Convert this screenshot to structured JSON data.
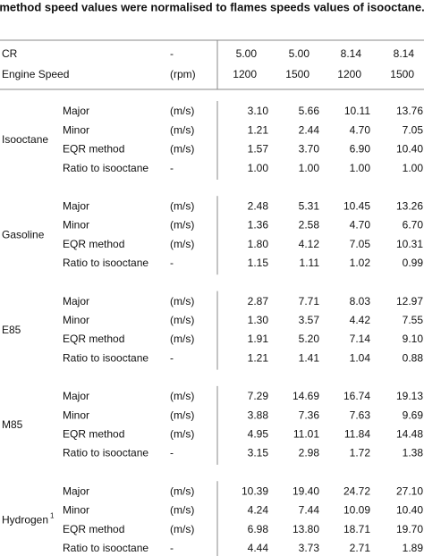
{
  "caption": "method speed values were normalised to flames speeds values of isooctane.",
  "header": [
    {
      "label": "CR",
      "unit": "-",
      "values": [
        "5.00",
        "5.00",
        "8.14",
        "8.14"
      ]
    },
    {
      "label": "Engine Speed",
      "unit": "(rpm)",
      "values": [
        "1200",
        "1500",
        "1200",
        "1500"
      ]
    }
  ],
  "groups": [
    {
      "name": "Isooctane",
      "rows": [
        {
          "measure": "Major",
          "unit": "(m/s)",
          "values": [
            "3.10",
            "5.66",
            "10.11",
            "13.76"
          ]
        },
        {
          "measure": "Minor",
          "unit": "(m/s)",
          "values": [
            "1.21",
            "2.44",
            "4.70",
            "7.05"
          ]
        },
        {
          "measure": "EQR method",
          "unit": "(m/s)",
          "values": [
            "1.57",
            "3.70",
            "6.90",
            "10.40"
          ]
        },
        {
          "measure": "Ratio to isooctane",
          "unit": "-",
          "values": [
            "1.00",
            "1.00",
            "1.00",
            "1.00"
          ]
        }
      ]
    },
    {
      "name": "Gasoline",
      "rows": [
        {
          "measure": "Major",
          "unit": "(m/s)",
          "values": [
            "2.48",
            "5.31",
            "10.45",
            "13.26"
          ]
        },
        {
          "measure": "Minor",
          "unit": "(m/s)",
          "values": [
            "1.36",
            "2.58",
            "4.70",
            "6.70"
          ]
        },
        {
          "measure": "EQR method",
          "unit": "(m/s)",
          "values": [
            "1.80",
            "4.12",
            "7.05",
            "10.31"
          ]
        },
        {
          "measure": "Ratio to isooctane",
          "unit": "-",
          "values": [
            "1.15",
            "1.11",
            "1.02",
            "0.99"
          ]
        }
      ]
    },
    {
      "name": "E85",
      "rows": [
        {
          "measure": "Major",
          "unit": "(m/s)",
          "values": [
            "2.87",
            "7.71",
            "8.03",
            "12.97"
          ]
        },
        {
          "measure": "Minor",
          "unit": "(m/s)",
          "values": [
            "1.30",
            "3.57",
            "4.42",
            "7.55"
          ]
        },
        {
          "measure": "EQR method",
          "unit": "(m/s)",
          "values": [
            "1.91",
            "5.20",
            "7.14",
            "9.10"
          ]
        },
        {
          "measure": "Ratio to isooctane",
          "unit": "-",
          "values": [
            "1.21",
            "1.41",
            "1.04",
            "0.88"
          ]
        }
      ]
    },
    {
      "name": "M85",
      "rows": [
        {
          "measure": "Major",
          "unit": "(m/s)",
          "values": [
            "7.29",
            "14.69",
            "16.74",
            "19.13"
          ]
        },
        {
          "measure": "Minor",
          "unit": "(m/s)",
          "values": [
            "3.88",
            "7.36",
            "7.63",
            "9.69"
          ]
        },
        {
          "measure": "EQR method",
          "unit": "(m/s)",
          "values": [
            "4.95",
            "11.01",
            "11.84",
            "14.48"
          ]
        },
        {
          "measure": "Ratio to isooctane",
          "unit": "-",
          "values": [
            "3.15",
            "2.98",
            "1.72",
            "1.38"
          ]
        }
      ]
    },
    {
      "name": "Hydrogen",
      "superscript": "1",
      "rows": [
        {
          "measure": "Major",
          "unit": "(m/s)",
          "values": [
            "10.39",
            "19.40",
            "24.72",
            "27.10"
          ]
        },
        {
          "measure": "Minor",
          "unit": "(m/s)",
          "values": [
            "4.24",
            "7.44",
            "10.09",
            "10.40"
          ]
        },
        {
          "measure": "EQR method",
          "unit": "(m/s)",
          "values": [
            "6.98",
            "13.80",
            "18.71",
            "19.70"
          ]
        },
        {
          "measure": "Ratio to isooctane",
          "unit": "-",
          "values": [
            "4.44",
            "3.73",
            "2.71",
            "1.89"
          ]
        }
      ]
    }
  ]
}
